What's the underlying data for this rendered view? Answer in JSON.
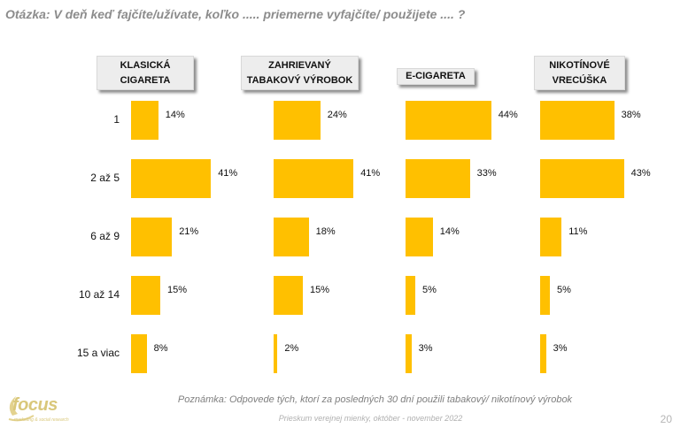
{
  "question": "Otázka: V deň keď fajčíte/užívate, koľko ..... priemerne vyfajčíte/ použijete .... ?",
  "note": "Poznámka: Odpovede tých, ktorí za posledných 30 dní použili tabakový/ nikotínový výrobok",
  "footer": "Prieskum verejnej mienky, október - november 2022",
  "page_number": "20",
  "logo": {
    "text": "focus",
    "tagline": "marketing & social research"
  },
  "colors": {
    "bar": "#FFC000",
    "header_bg": "#EDEDED"
  },
  "chart_data": {
    "type": "bar",
    "orientation": "horizontal",
    "categories": [
      "1",
      "2 až 5",
      "6 až 9",
      "10 až 14",
      "15 a viac"
    ],
    "series": [
      {
        "name": "KLASICKÁ\nCIGARETA",
        "values": [
          14,
          41,
          21,
          15,
          8
        ]
      },
      {
        "name": "ZAHRIEVANÝ\nTABAKOVÝ VÝROBOK",
        "values": [
          24,
          41,
          18,
          15,
          2
        ]
      },
      {
        "name": "E-CIGARETA",
        "values": [
          44,
          33,
          14,
          5,
          3
        ]
      },
      {
        "name": "NIKOTÍNOVÉ\nVRECÚŠKA",
        "values": [
          38,
          43,
          11,
          5,
          3
        ]
      }
    ],
    "value_suffix": "%"
  }
}
